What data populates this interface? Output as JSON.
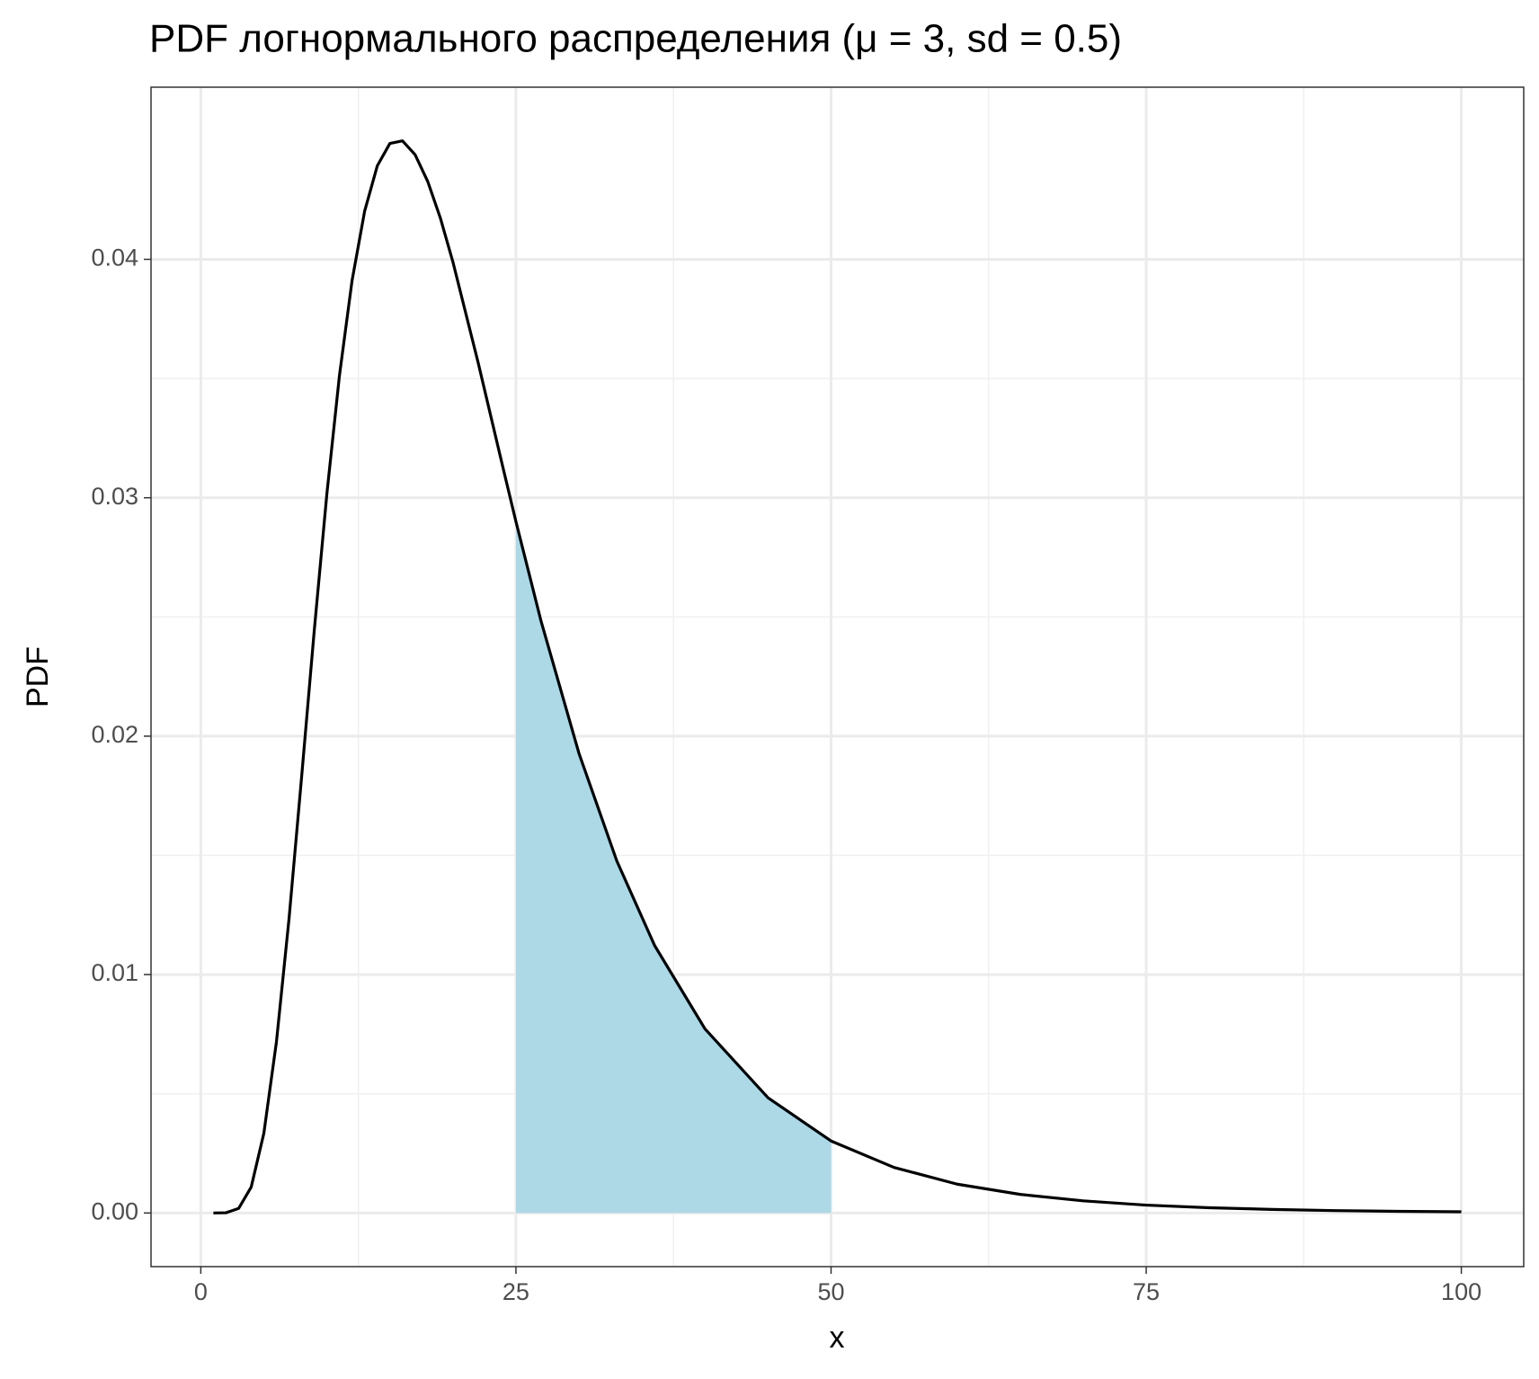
{
  "chart_data": {
    "type": "line",
    "title": "PDF логнормального распределения (μ = 3, sd = 0.5)",
    "x_label": "x",
    "y_label": "PDF",
    "x": [
      1,
      2,
      3,
      4,
      5,
      6,
      7,
      8,
      9,
      10,
      11,
      12,
      13,
      14,
      15,
      16,
      17,
      18,
      19,
      20,
      22,
      24,
      25,
      27,
      30,
      33,
      36,
      40,
      45,
      50,
      55,
      60,
      65,
      70,
      75,
      80,
      85,
      90,
      95,
      100
    ],
    "series": [
      {
        "color": "#000000",
        "values": [
          0.0,
          1e-05,
          0.00019,
          0.00109,
          0.00334,
          0.00718,
          0.01235,
          0.01831,
          0.02443,
          0.03016,
          0.03513,
          0.03911,
          0.04203,
          0.04392,
          0.04486,
          0.04497,
          0.04439,
          0.04327,
          0.04174,
          0.03989,
          0.03567,
          0.0312,
          0.029,
          0.02481,
          0.01928,
          0.01477,
          0.01122,
          0.00772,
          0.00483,
          0.00302,
          0.00191,
          0.00121,
          0.00078,
          0.00051,
          0.00033,
          0.00022,
          0.00015,
          0.0001,
          7e-05,
          5e-05
        ]
      }
    ],
    "area": {
      "color": "#add8e6",
      "x": [
        25,
        27,
        30,
        33,
        36,
        40,
        45,
        50
      ],
      "values": [
        0.029,
        0.02481,
        0.01928,
        0.01477,
        0.01122,
        0.00772,
        0.00483,
        0.00302
      ]
    },
    "xlim": [
      -3.95,
      104.95
    ],
    "ylim": [
      -0.00225,
      0.04722
    ],
    "xticks": [
      0,
      25,
      50,
      75,
      100
    ],
    "yticks": [
      {
        "value": 0,
        "label": "0.00"
      },
      {
        "value": 0.01,
        "label": "0.01"
      },
      {
        "value": 0.02,
        "label": "0.02"
      },
      {
        "value": 0.03,
        "label": "0.03"
      },
      {
        "value": 0.04,
        "label": "0.04"
      }
    ],
    "grid": true
  }
}
